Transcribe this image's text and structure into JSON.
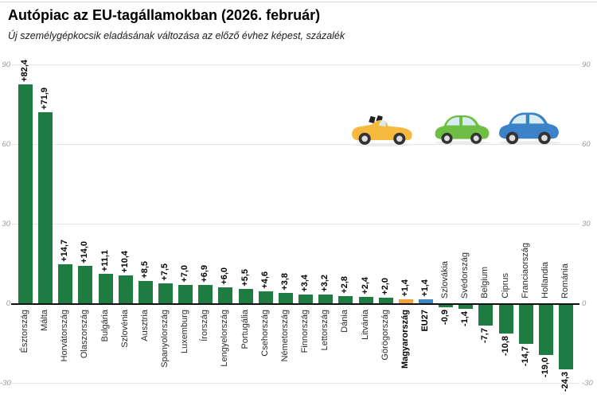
{
  "header": {
    "title": "Autópiac az EU-tagállamokban (2026. február)",
    "subtitle": "Új személygépkocsik eladásának változása az előző évhez képest, százalék"
  },
  "chart_data": {
    "type": "bar",
    "title": "Autópiac az EU-tagállamokban (2026. február)",
    "subtitle": "Új személygépkocsik eladásának változása az előző évhez képest, százalék",
    "unit": "%",
    "ylim": [
      -30,
      90
    ],
    "yticks": [
      90,
      60,
      30,
      0,
      -30
    ],
    "grid": true,
    "legend_position": "none",
    "categories": [
      "Észtország",
      "Málta",
      "Horvátország",
      "Olaszország",
      "Bulgária",
      "Szlovénia",
      "Ausztria",
      "Spanyolország",
      "Luxemburg",
      "Írország",
      "Lengyelország",
      "Portugália",
      "Csehország",
      "Németország",
      "Finnország",
      "Lettország",
      "Dánia",
      "Litvánia",
      "Görögország",
      "Magyarország",
      "EU27",
      "Szlovákia",
      "Svédország",
      "Belgium",
      "Ciprus",
      "Franciaország",
      "Hollandia",
      "Románia"
    ],
    "values": [
      82.4,
      71.9,
      14.7,
      14.0,
      11.1,
      10.4,
      8.5,
      7.5,
      7.0,
      6.9,
      6.0,
      5.5,
      4.6,
      3.8,
      3.4,
      3.2,
      2.8,
      2.4,
      2.0,
      1.4,
      1.4,
      -0.9,
      -1.4,
      -7.7,
      -10.8,
      -14.7,
      -19.0,
      -24.3
    ],
    "value_labels": [
      "+82,4",
      "+71,9",
      "+14,7",
      "+14,0",
      "+11,1",
      "+10,4",
      "+8,5",
      "+7,5",
      "+7,0",
      "+6,9",
      "+6,0",
      "+5,5",
      "+4,6",
      "+3,8",
      "+3,4",
      "+3,2",
      "+2,8",
      "+2,4",
      "+2,0",
      "+1,4",
      "+1,4",
      "-0,9",
      "-1,4",
      "-7,7",
      "-10,8",
      "-14,7",
      "-19,0",
      "-24,3"
    ],
    "bold_labels": [
      "Magyarország",
      "EU27"
    ],
    "highlight_colors": {
      "Magyarország": "#F2A33C",
      "EU27": "#4186C4"
    },
    "colors": {
      "bar_default": "#1E7B41",
      "hungary_bar": "#F2A33C",
      "eu27_bar": "#4186C4",
      "axis_line": "#111111",
      "gridline": "#E6E6E6"
    }
  },
  "decoration": {
    "cars": [
      {
        "name": "yellow-convertible-car",
        "color": "#F6B93F"
      },
      {
        "name": "green-hatchback-car",
        "color": "#6FBE44"
      },
      {
        "name": "blue-hatchback-car",
        "color": "#3B82C9"
      }
    ]
  }
}
